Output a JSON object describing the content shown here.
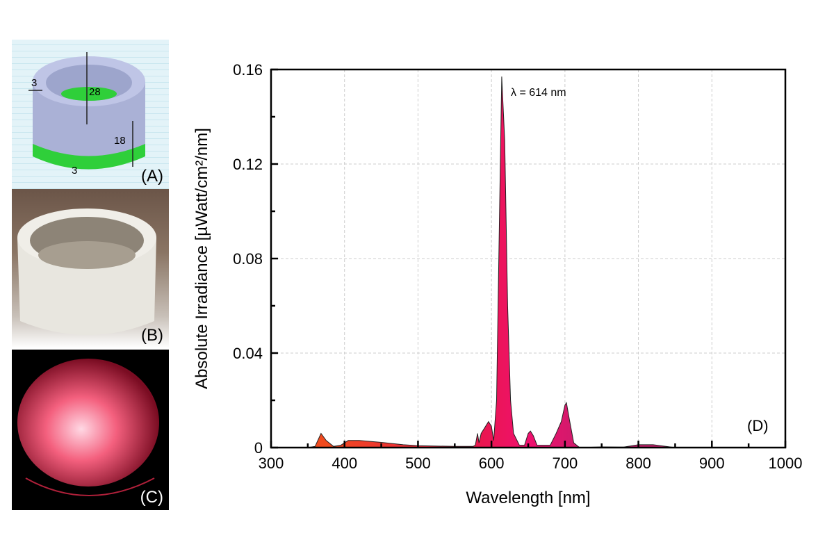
{
  "panels": {
    "a_label": "(A)",
    "b_label": "(B)",
    "c_label": "(C)",
    "d_label": "(D)",
    "dims": {
      "wall": "3",
      "height": "28",
      "band": "18",
      "base": "3"
    }
  },
  "colors": {
    "spectrum_fill_start": "#f04a1e",
    "spectrum_fill_mid": "#e8184a",
    "spectrum_fill_end": "#f0106e",
    "base_green": "#2fcf3a"
  },
  "chart_data": {
    "type": "area",
    "xlabel": "Wavelength [nm]",
    "ylabel": "Absolute Irradiance [µWatt/cm²/nm]",
    "xlim": [
      300,
      1000
    ],
    "ylim": [
      0,
      0.16
    ],
    "xticks": [
      "300",
      "400",
      "500",
      "600",
      "700",
      "800",
      "900",
      "1000"
    ],
    "yticks": [
      "0",
      "0.04",
      "0.08",
      "0.12",
      "0.16"
    ],
    "grid": true,
    "annotation": "λ = 614 nm",
    "x": [
      350,
      360,
      368,
      375,
      385,
      395,
      405,
      420,
      450,
      480,
      500,
      550,
      575,
      578,
      581,
      583,
      586,
      590,
      596,
      600,
      603,
      607,
      611,
      614,
      618,
      622,
      626,
      630,
      638,
      645,
      650,
      653,
      657,
      662,
      680,
      688,
      695,
      700,
      702,
      706,
      712,
      720,
      750,
      780,
      800,
      820,
      840,
      850
    ],
    "y": [
      0,
      0.0005,
      0.006,
      0.003,
      0.0005,
      0.001,
      0.003,
      0.003,
      0.0022,
      0.0012,
      0.0008,
      0.0005,
      0.0005,
      0.001,
      0.006,
      0.002,
      0.006,
      0.008,
      0.011,
      0.009,
      0.003,
      0.02,
      0.1,
      0.157,
      0.13,
      0.06,
      0.02,
      0.006,
      0.001,
      0.001,
      0.006,
      0.007,
      0.005,
      0.001,
      0.001,
      0.006,
      0.011,
      0.018,
      0.019,
      0.012,
      0.002,
      0,
      0.0003,
      0.0002,
      0.0012,
      0.0012,
      0.0004,
      0
    ]
  }
}
